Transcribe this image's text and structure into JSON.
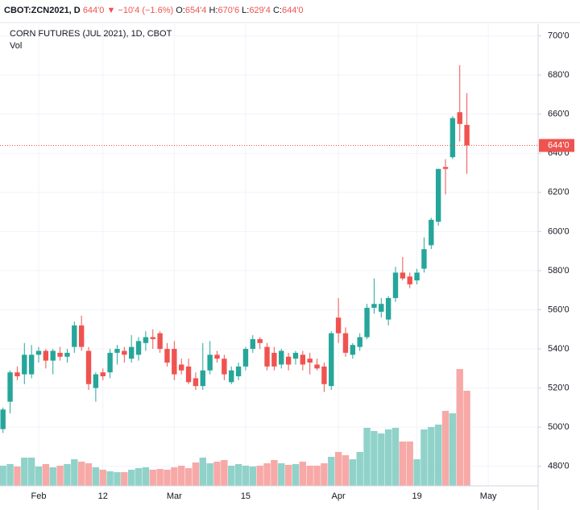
{
  "chart_data": {
    "type": "candlestick",
    "header": {
      "symbol": "CBOT:ZCN2021, D",
      "last": "644'0",
      "change": "▼ −10'4 (−1.6%)",
      "ohlc": [
        {
          "label": "O:",
          "value": "654'4"
        },
        {
          "label": "H:",
          "value": "670'6"
        },
        {
          "label": "L:",
          "value": "629'4"
        },
        {
          "label": "C:",
          "value": "644'0"
        }
      ]
    },
    "title": "CORN FUTURES (JUL 2021), 1D, CBOT",
    "volume_label": "Vol",
    "last_price": {
      "value": 644,
      "label": "644'0"
    },
    "up_color": "#26a69a",
    "down_color": "#ef5350",
    "volume_up_color": "#90d2c9",
    "volume_down_color": "#f7a9a7",
    "grid": true,
    "categories": [
      null,
      null,
      null,
      null,
      null,
      "Feb",
      null,
      null,
      null,
      null,
      null,
      null,
      null,
      null,
      "12",
      null,
      null,
      null,
      null,
      null,
      null,
      null,
      null,
      null,
      "Mar",
      null,
      null,
      null,
      null,
      null,
      null,
      null,
      null,
      null,
      "15",
      null,
      null,
      null,
      null,
      null,
      null,
      null,
      null,
      null,
      null,
      null,
      null,
      "Apr",
      null,
      null,
      null,
      null,
      null,
      null,
      null,
      null,
      null,
      null,
      "19",
      null,
      null,
      null,
      null,
      null,
      null,
      null,
      null,
      null,
      "May"
    ],
    "open": [
      499,
      513,
      528,
      527,
      527,
      537,
      539,
      534,
      538,
      536,
      541,
      552,
      539,
      520,
      528,
      528,
      538,
      539,
      535,
      537,
      543,
      546,
      548,
      540,
      540,
      532,
      531,
      525,
      521,
      529,
      537,
      535,
      523,
      526,
      531,
      540,
      545,
      541,
      538,
      532,
      536,
      535,
      537,
      535,
      532,
      531,
      521,
      556,
      548,
      537,
      541,
      546,
      561,
      559,
      555,
      566,
      579,
      577,
      575,
      581,
      593,
      605,
      633,
      638,
      661,
      654.5,
      null,
      null,
      null
    ],
    "high": [
      510,
      529,
      531,
      543,
      542,
      541,
      540,
      540,
      541,
      540,
      554,
      557,
      541,
      528,
      530,
      540,
      542,
      541,
      547,
      546,
      549,
      550,
      549,
      543,
      544,
      535,
      535,
      528,
      543,
      544,
      539,
      537,
      531,
      533,
      541,
      547,
      546,
      543,
      541,
      540,
      538,
      539,
      539,
      538,
      535,
      533,
      549,
      566,
      551,
      543,
      548,
      563,
      576,
      566,
      567,
      582,
      587,
      579,
      581,
      597,
      607,
      632,
      637,
      659,
      685,
      670.75,
      null,
      null,
      null
    ],
    "low": [
      497,
      507,
      524,
      522,
      525,
      533,
      530,
      527,
      534,
      533,
      538,
      539,
      519,
      513,
      524,
      525,
      532,
      533,
      533,
      534,
      539,
      540,
      538,
      531,
      524,
      527,
      522,
      519,
      519,
      527,
      533,
      524,
      522,
      524,
      529,
      538,
      540,
      529,
      529,
      530,
      529,
      532,
      529,
      527,
      529,
      518,
      519,
      543,
      536,
      535,
      539,
      545,
      558,
      556,
      552,
      564,
      575,
      571,
      573,
      579,
      591,
      603,
      619,
      637,
      646,
      629.5,
      null,
      null,
      null
    ],
    "close": [
      509,
      528,
      526,
      537,
      537,
      539,
      534,
      539,
      536,
      538,
      552,
      541,
      522,
      527,
      526,
      538,
      540,
      537,
      541,
      544,
      546,
      545,
      540,
      533,
      527,
      529,
      523,
      521,
      529,
      537,
      535,
      527,
      529,
      531,
      540,
      545,
      543,
      531,
      531,
      539,
      532,
      538,
      532,
      533,
      530,
      522,
      548,
      548,
      538,
      542,
      546,
      561,
      563,
      563,
      566,
      579,
      576,
      573,
      579,
      591,
      606,
      632,
      632,
      658,
      655,
      644,
      null,
      null,
      null
    ],
    "volume": [
      25,
      27,
      24,
      35,
      35,
      24,
      27,
      23,
      25,
      27,
      33,
      30,
      28,
      23,
      20,
      18,
      17,
      17,
      20,
      22,
      23,
      20,
      21,
      20,
      23,
      25,
      22,
      29,
      35,
      28,
      30,
      32,
      25,
      27,
      25,
      24,
      25,
      28,
      32,
      28,
      26,
      27,
      30,
      25,
      25,
      28,
      36,
      42,
      38,
      33,
      42,
      72,
      68,
      65,
      70,
      72,
      55,
      55,
      33,
      70,
      73,
      76,
      93,
      90,
      145,
      118,
      null,
      null,
      null
    ],
    "ylim": [
      470,
      706
    ],
    "yticks": [
      {
        "value": 480,
        "label": "480'0"
      },
      {
        "value": 500,
        "label": "500'0"
      },
      {
        "value": 520,
        "label": "520'0"
      },
      {
        "value": 540,
        "label": "540'0"
      },
      {
        "value": 560,
        "label": "560'0"
      },
      {
        "value": 580,
        "label": "580'0"
      },
      {
        "value": 600,
        "label": "600'0"
      },
      {
        "value": 620,
        "label": "620'0"
      },
      {
        "value": 640,
        "label": "640'0"
      },
      {
        "value": 660,
        "label": "660'0"
      },
      {
        "value": 680,
        "label": "680'0"
      },
      {
        "value": 700,
        "label": "700'0"
      }
    ]
  }
}
